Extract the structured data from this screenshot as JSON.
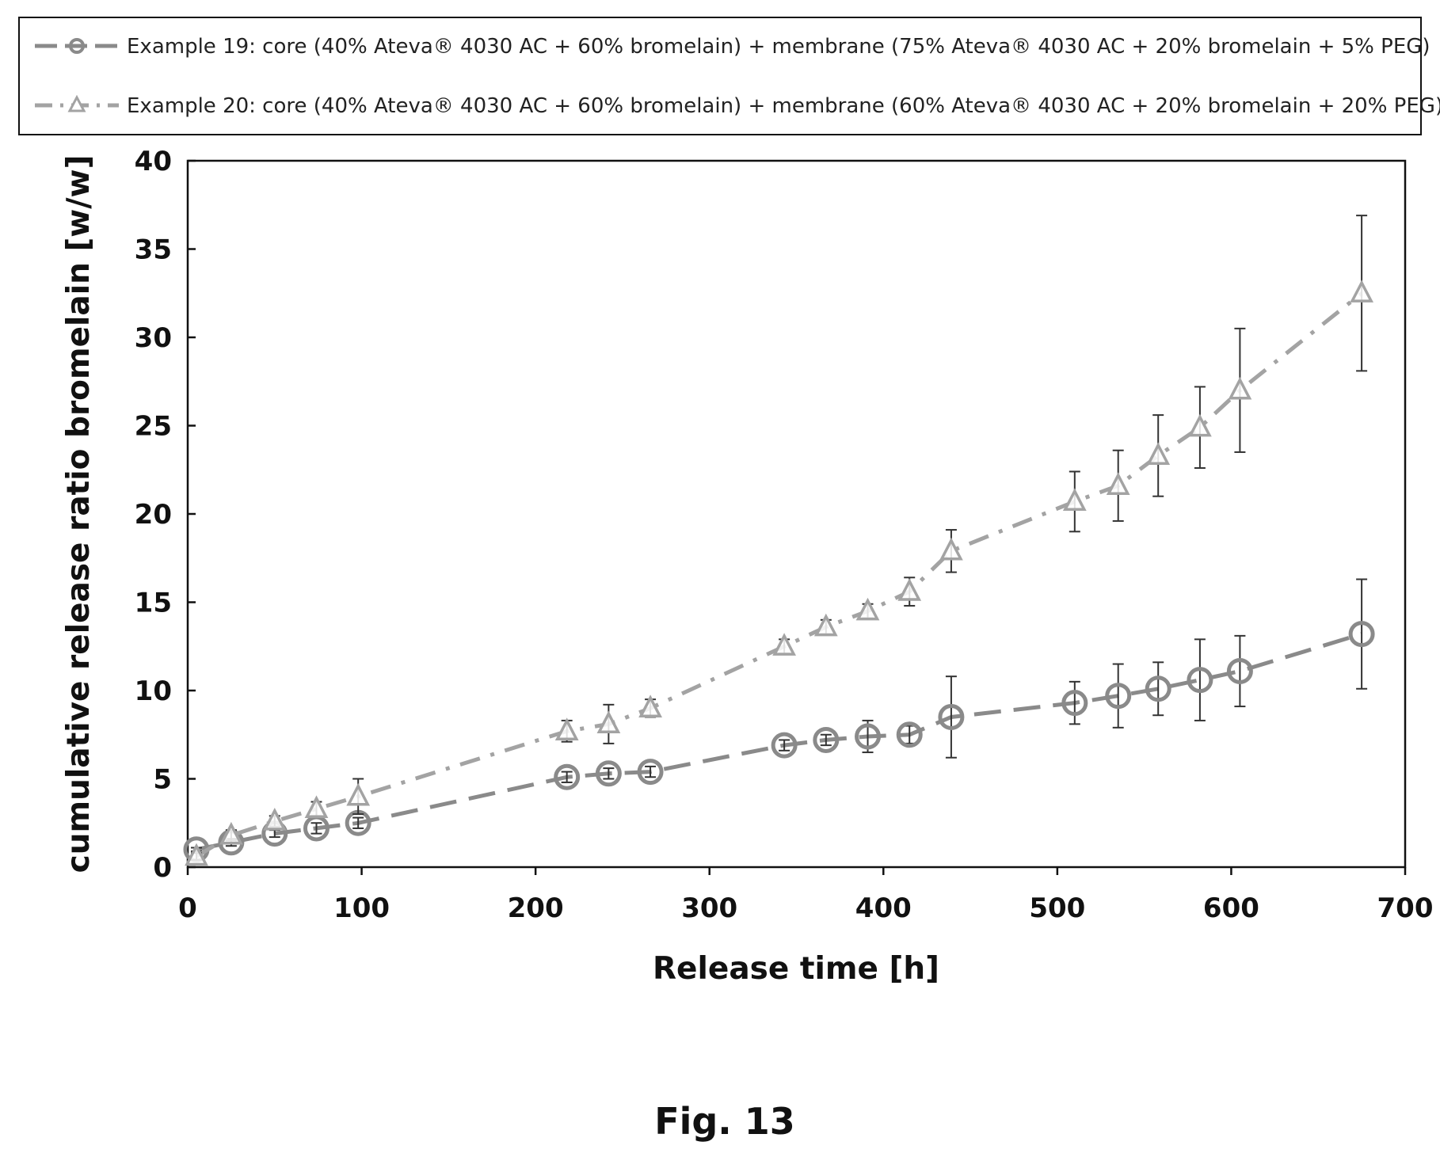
{
  "figure": {
    "caption": "Fig. 13"
  },
  "chart_data": {
    "type": "line",
    "xlabel": "Release time [h]",
    "ylabel": "cumulative release ratio bromelain [w/w]",
    "xlim": [
      0,
      700
    ],
    "ylim": [
      0,
      40
    ],
    "xticks": [
      0,
      100,
      200,
      300,
      400,
      500,
      600,
      700
    ],
    "yticks": [
      0,
      5,
      10,
      15,
      20,
      25,
      30,
      35,
      40
    ],
    "grid": false,
    "legend_position": "top",
    "series": [
      {
        "name": "Example 19: core (40% Ateva® 4030 AC + 60% bromelain) + membrane (75% Ateva® 4030 AC + 20% bromelain + 5% PEG)",
        "marker": "circle",
        "line_style": "long-dash",
        "color": "#8a8a8a",
        "x": [
          5,
          25,
          50,
          74,
          98,
          218,
          242,
          266,
          343,
          367,
          391,
          415,
          439,
          510,
          535,
          558,
          582,
          605,
          675
        ],
        "y": [
          1.0,
          1.4,
          1.9,
          2.2,
          2.5,
          5.1,
          5.3,
          5.4,
          6.9,
          7.2,
          7.4,
          7.5,
          8.5,
          9.3,
          9.7,
          10.1,
          10.6,
          11.1,
          13.2
        ],
        "err": [
          0.1,
          0.2,
          0.2,
          0.3,
          0.3,
          0.3,
          0.3,
          0.3,
          0.3,
          0.3,
          0.9,
          0.5,
          2.3,
          1.2,
          1.8,
          1.5,
          2.3,
          2.0,
          3.1
        ]
      },
      {
        "name": "Example 20: core (40% Ateva® 4030 AC + 60% bromelain) + membrane (60% Ateva® 4030 AC + 20% bromelain + 20% PEG)",
        "marker": "triangle",
        "line_style": "dash-dot",
        "color": "#a3a3a3",
        "x": [
          5,
          25,
          50,
          74,
          98,
          218,
          242,
          266,
          343,
          367,
          391,
          415,
          439,
          510,
          535,
          558,
          582,
          605,
          675
        ],
        "y": [
          0.6,
          1.8,
          2.6,
          3.3,
          4.0,
          7.7,
          8.1,
          9.0,
          12.5,
          13.6,
          14.5,
          15.6,
          17.9,
          20.7,
          21.6,
          23.3,
          24.9,
          27.0,
          32.5
        ],
        "err": [
          0.2,
          0.3,
          0.3,
          0.4,
          1.0,
          0.6,
          1.1,
          0.5,
          0.4,
          0.4,
          0.4,
          0.8,
          1.2,
          1.7,
          2.0,
          2.3,
          2.3,
          3.5,
          4.4
        ]
      }
    ]
  }
}
